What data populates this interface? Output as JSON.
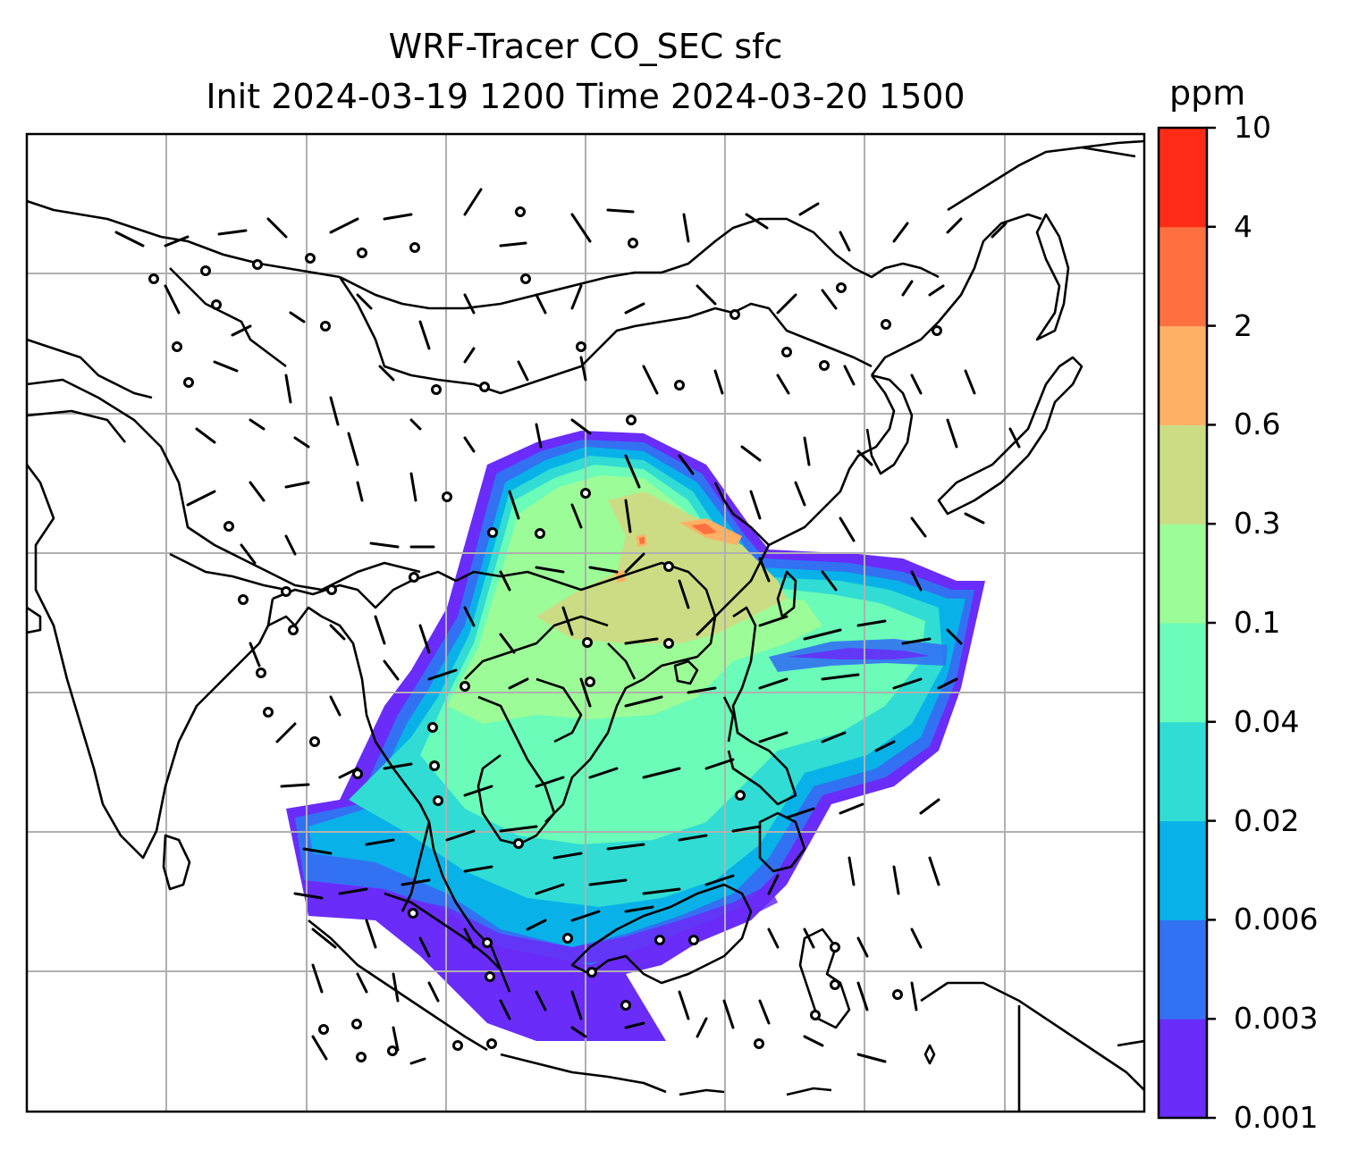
{
  "title_line1": "WRF-Tracer CO_SEC sfc",
  "title_line2": "Init 2024-03-19 1200 Time 2024-03-20 1500",
  "colorbar": {
    "unit": "ppm",
    "levels": [
      "0.001",
      "0.003",
      "0.006",
      "0.02",
      "0.04",
      "0.1",
      "0.3",
      "0.6",
      "2",
      "4",
      "10"
    ],
    "colors": [
      "#6a2cf8",
      "#3272f2",
      "#08b2e8",
      "#31dcd4",
      "#6afcb8",
      "#9cfc98",
      "#ccdc84",
      "#feb064",
      "#fe7040",
      "#fe2c16"
    ]
  },
  "map": {
    "frame_color": "#000000",
    "grid_color": "#b0b0b0",
    "coastline_color": "#000000"
  }
}
